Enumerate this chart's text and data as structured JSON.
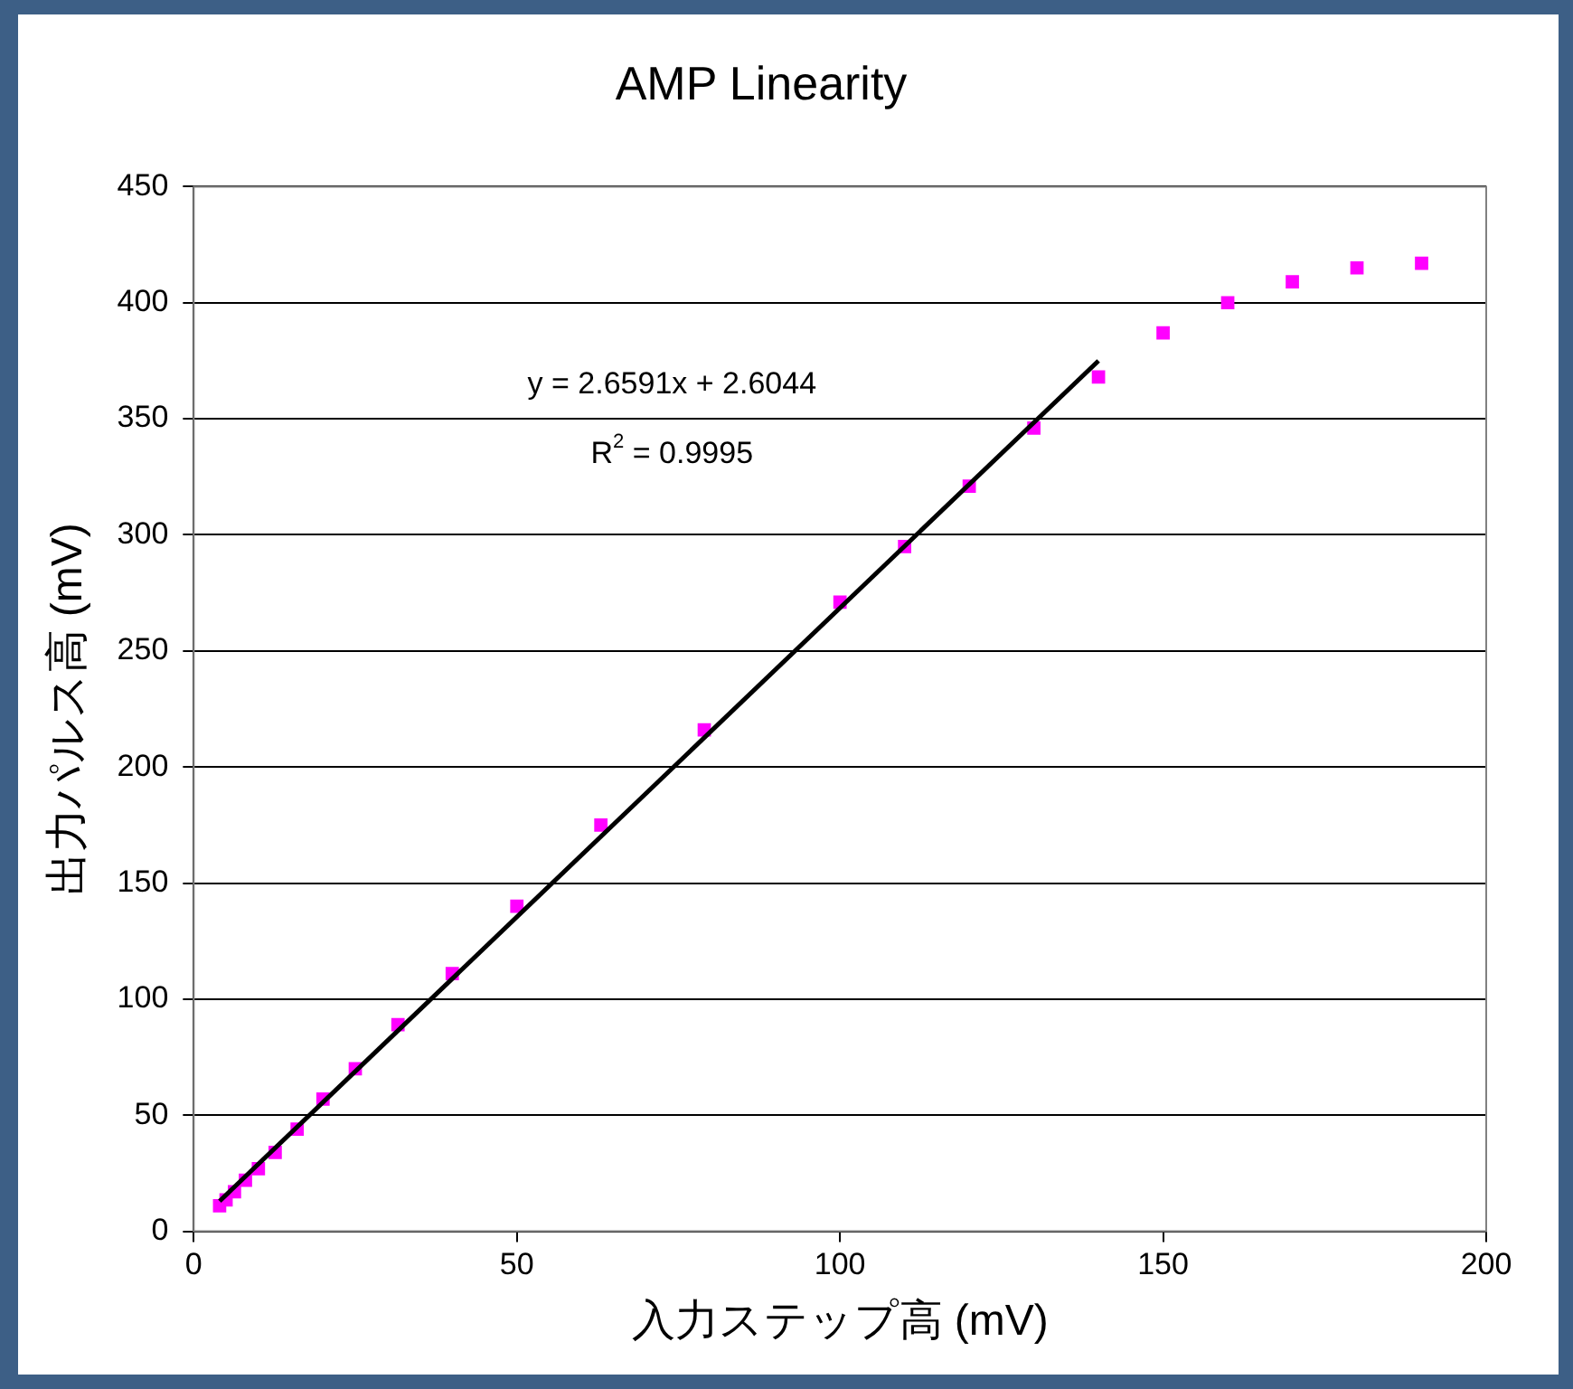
{
  "chart_data": {
    "type": "scatter",
    "title": "AMP Linearity",
    "xlabel": "入力ステップ高 (mV)",
    "ylabel": "出力パルス高 (mV)",
    "series": [
      {
        "color": "#ff00ff",
        "marker": "square",
        "x": [
          4,
          5,
          6.3,
          8,
          10,
          12.6,
          16,
          20,
          25,
          31.6,
          40,
          50,
          63,
          79,
          100,
          110,
          120,
          130,
          140,
          150,
          160,
          170,
          180,
          190
        ],
        "values": [
          11,
          13.5,
          17,
          22,
          27,
          34,
          44,
          57,
          70,
          89,
          111,
          140,
          175,
          216,
          271,
          295,
          321,
          346,
          368,
          387,
          400,
          409,
          415,
          417
        ]
      },
      {
        "type": "line",
        "color": "#000000",
        "marker": "none",
        "line_style": "solid",
        "x": [
          4,
          140
        ],
        "values": [
          13,
          375
        ]
      }
    ],
    "annotations": [
      "y = 2.6591x + 2.6044",
      "R$^{2}$ = 0.9995"
    ],
    "xlim": [
      0,
      200
    ],
    "xticks": [
      0,
      50,
      100,
      150,
      200
    ],
    "ylim": [
      0,
      450
    ],
    "yticks": [
      0,
      50,
      100,
      150,
      200,
      250,
      300,
      350,
      400,
      450
    ],
    "grid": "y",
    "legend": false
  }
}
